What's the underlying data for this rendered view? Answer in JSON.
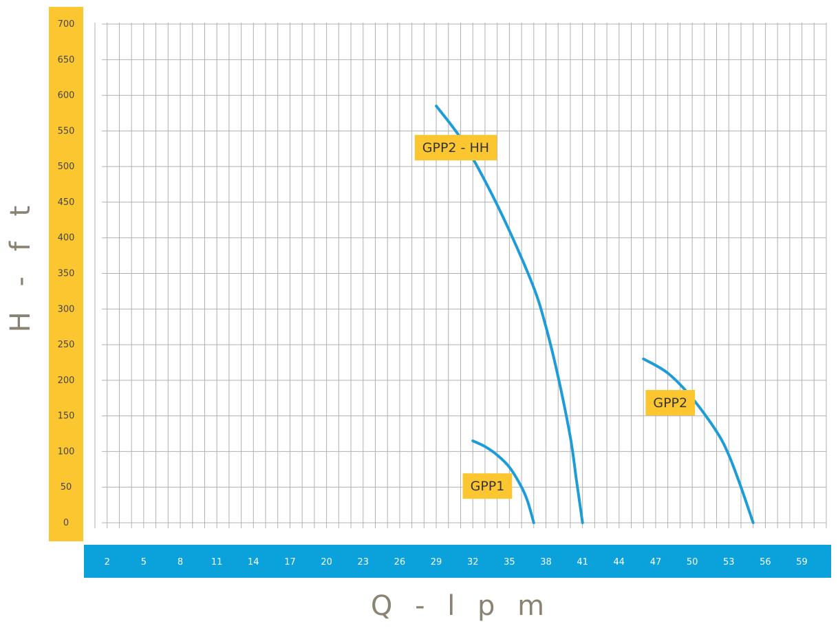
{
  "chart_data": {
    "type": "line",
    "xlabel": "Q - l p m",
    "ylabel": "H - f t",
    "xlim": [
      1,
      61
    ],
    "ylim": [
      0,
      700
    ],
    "x_ticks": [
      2,
      5,
      8,
      11,
      14,
      17,
      20,
      23,
      26,
      29,
      32,
      35,
      38,
      41,
      44,
      47,
      50,
      53,
      56,
      59
    ],
    "y_ticks": [
      0,
      50,
      100,
      150,
      200,
      250,
      300,
      350,
      400,
      450,
      500,
      550,
      600,
      650,
      700
    ],
    "grid": true,
    "series": [
      {
        "name": "GPP1",
        "x": [
          32,
          33,
          34,
          35,
          36,
          36.5,
          37
        ],
        "y": [
          115,
          107,
          95,
          78,
          50,
          30,
          0
        ]
      },
      {
        "name": "GPP2 - HH",
        "x": [
          29,
          31,
          33,
          35,
          37,
          38,
          39,
          40,
          40.5,
          41
        ],
        "y": [
          585,
          540,
          480,
          410,
          330,
          275,
          205,
          120,
          60,
          0
        ]
      },
      {
        "name": "GPP2",
        "x": [
          46,
          48,
          50,
          52,
          53,
          54,
          55
        ],
        "y": [
          230,
          210,
          175,
          128,
          95,
          50,
          0
        ]
      }
    ],
    "annotations": [
      {
        "text": "GPP2 - HH",
        "x": 30.6,
        "y": 527
      },
      {
        "text": "GPP2",
        "x": 48.2,
        "y": 169
      },
      {
        "text": "GPP1",
        "x": 33.2,
        "y": 52
      }
    ],
    "colors": {
      "line": "#1d9cd8",
      "y_band": "#fcc630",
      "x_band": "#0ba2dc",
      "grid": "#b0b0b0",
      "label_box": "#fcc630",
      "axis_title": "#8a8272"
    }
  }
}
